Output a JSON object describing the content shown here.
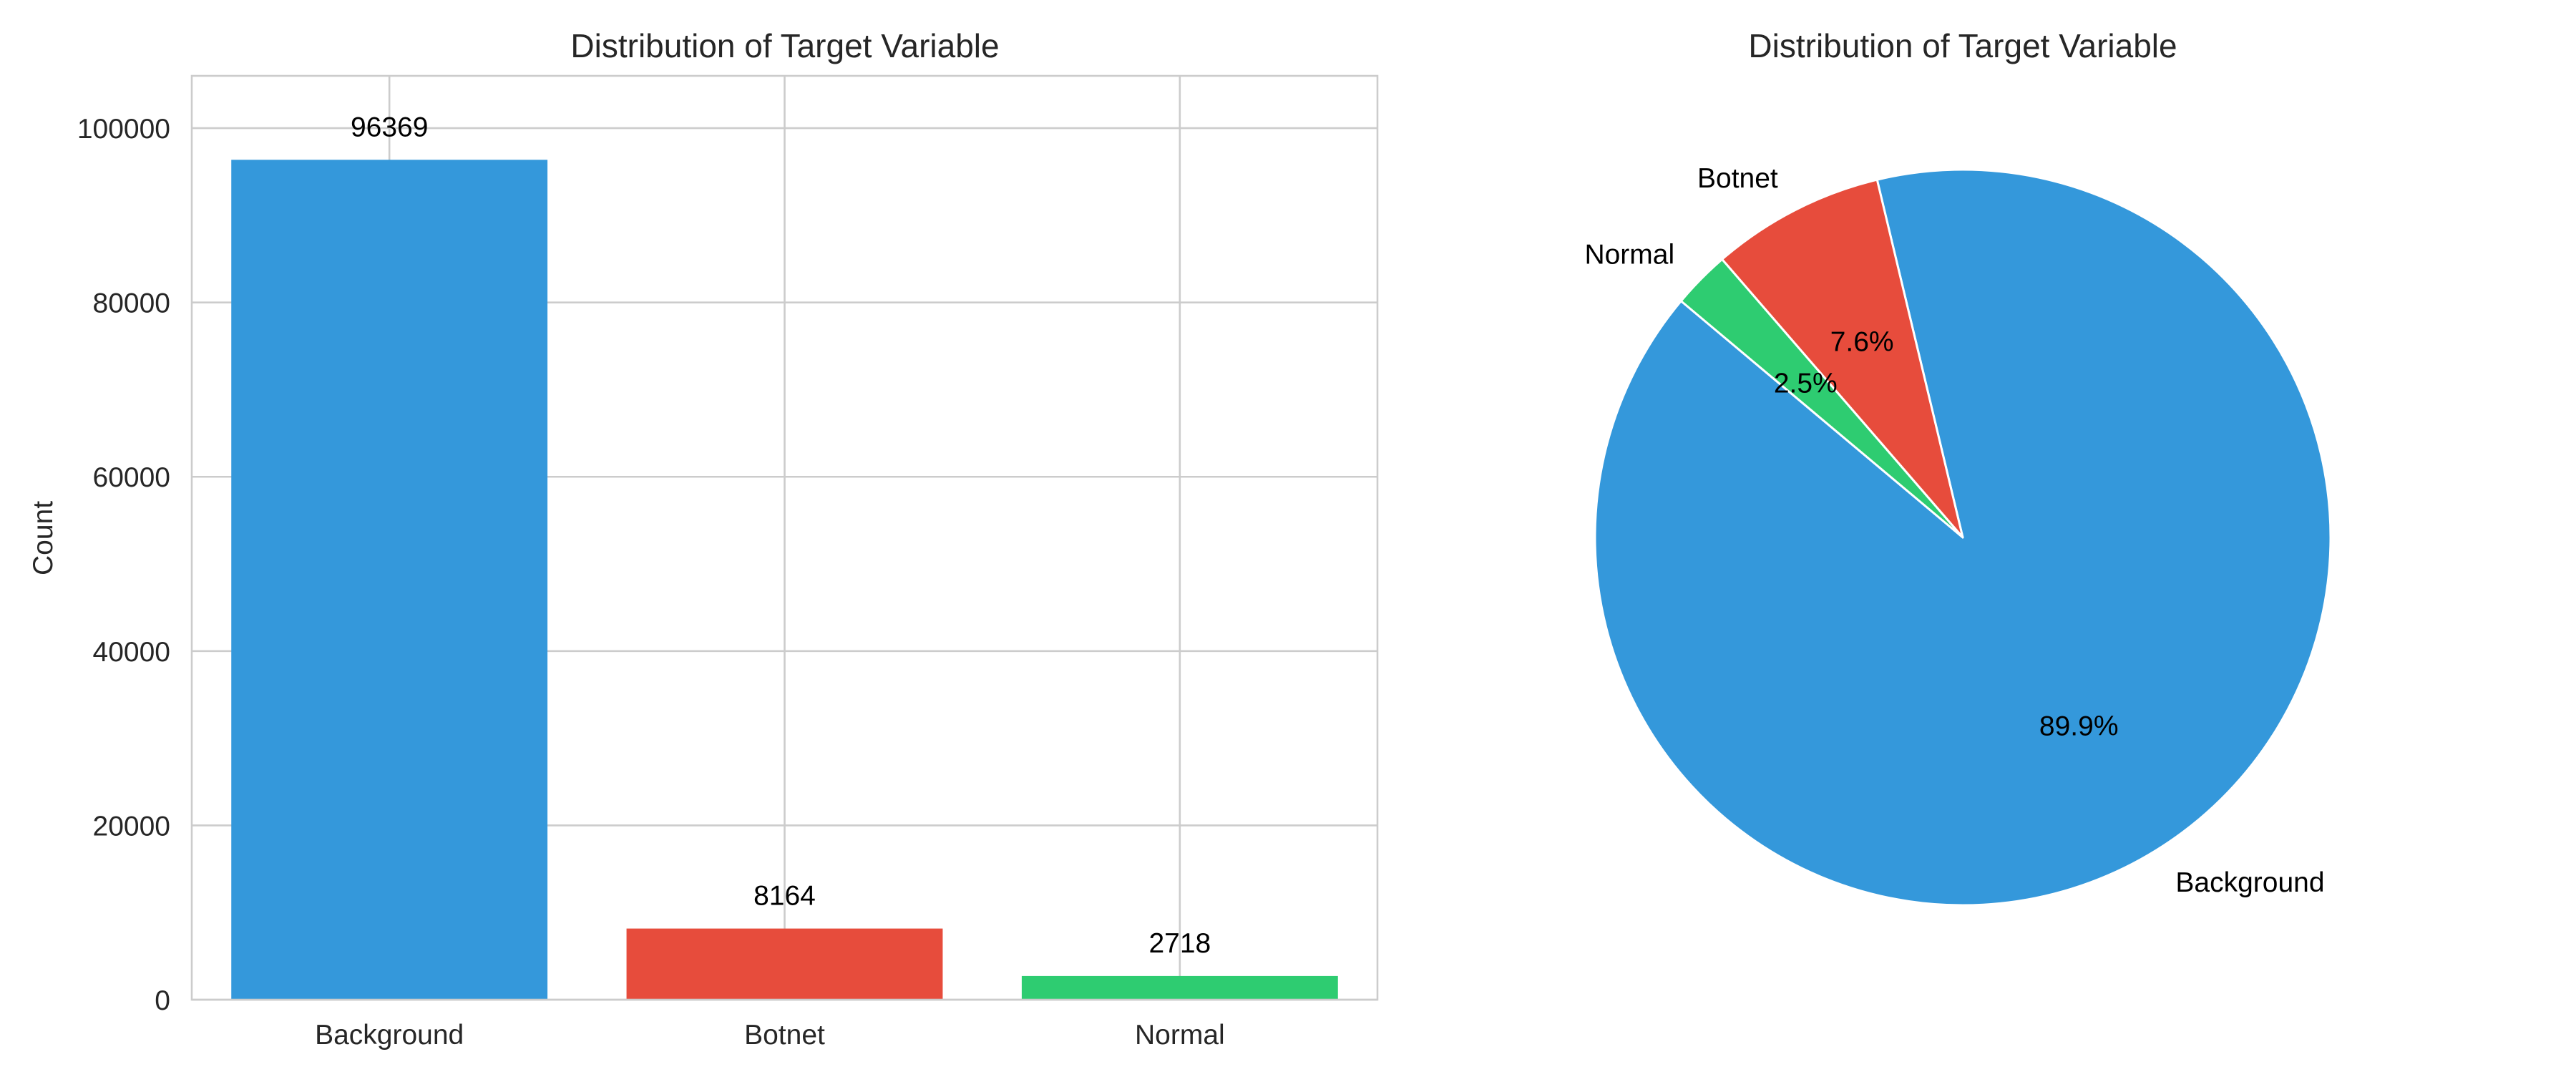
{
  "colors": {
    "background": "#3498db",
    "botnet": "#e74c3c",
    "normal": "#2ecc71",
    "grid": "#cccccc",
    "text": "#262626"
  },
  "chart_data": [
    {
      "type": "bar",
      "title": "Distribution of Target Variable",
      "xlabel": "",
      "ylabel": "Count",
      "categories": [
        "Background",
        "Botnet",
        "Normal"
      ],
      "values": [
        96369,
        8164,
        2718
      ],
      "value_labels": [
        "96369",
        "8164",
        "2718"
      ],
      "colors": [
        "#3498db",
        "#e74c3c",
        "#2ecc71"
      ],
      "ylim": [
        0,
        106000
      ],
      "yticks": [
        0,
        20000,
        40000,
        60000,
        80000,
        100000
      ],
      "ytick_labels": [
        "0",
        "20000",
        "40000",
        "60000",
        "80000",
        "100000"
      ],
      "grid": true,
      "legend": false
    },
    {
      "type": "pie",
      "title": "Distribution of Target Variable",
      "labels": [
        "Background",
        "Botnet",
        "Normal"
      ],
      "values": [
        96369,
        8164,
        2718
      ],
      "percent_labels": [
        "89.9%",
        "7.6%",
        "2.5%"
      ],
      "colors": [
        "#3498db",
        "#e74c3c",
        "#2ecc71"
      ],
      "start_angle_deg": 140,
      "legend": false
    }
  ]
}
